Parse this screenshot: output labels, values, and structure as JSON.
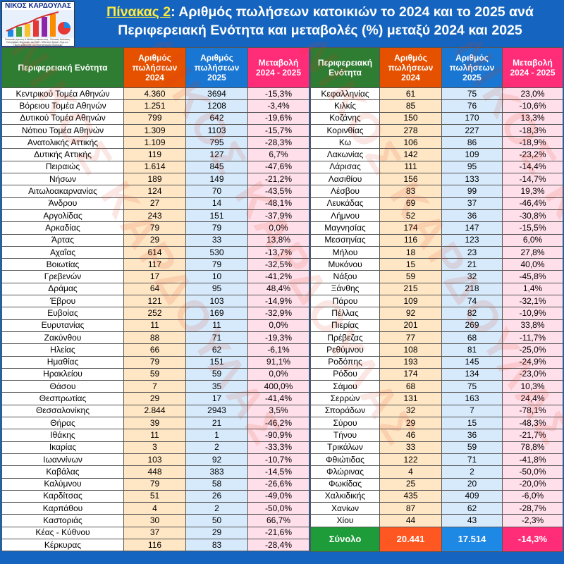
{
  "logo": {
    "name": "ΝΙΚΟΣ ΚΑΡΔΟΥΛΑΣ",
    "subtitle": "Στατιστικές έρευνες & Μελέτες επικοινωνίας - Πολιτικές Αναλύσεις · Τοπογράφος Μηχανικός του ΕΜΠ - MSc στην Αγορά - Εργ.κ.α. · Πρώην καθηγητής του Πανεπιστημίου Θεσσαλίας"
  },
  "title": {
    "label": "Πίνακας 2",
    "line1": ": Αριθμός πωλήσεων κατοικιών το 2024 και το 2025 ανά",
    "line2": "Περιφερειακή Ενότητα και μεταβολές (%) μεταξύ 2024 και 2025"
  },
  "watermark": "ΝΙΚΟΣ ΚΑΡΔΟΥΛΑΣ",
  "headers": {
    "region": "Περιφερειακή Ενότητα",
    "sales2024": "Αριθμός πωλήσεων 2024",
    "sales2025": "Αριθμός πωλήσεων 2025",
    "change": "Μεταβολή 2024 - 2025"
  },
  "left_rows": [
    [
      "Κεντρικού Τομέα Αθηνών",
      "4.360",
      "3694",
      "-15,3%"
    ],
    [
      "Βόρειου Τομέα Αθηνών",
      "1.251",
      "1208",
      "-3,4%"
    ],
    [
      "Δυτικού Τομέα Αθηνών",
      "799",
      "642",
      "-19,6%"
    ],
    [
      "Νότιου Τομέα Αθηνών",
      "1.309",
      "1103",
      "-15,7%"
    ],
    [
      "Ανατολικής Αττικής",
      "1.109",
      "795",
      "-28,3%"
    ],
    [
      "Δυτικής Αττικής",
      "119",
      "127",
      "6,7%"
    ],
    [
      "Πειραιώς",
      "1.614",
      "845",
      "-47,6%"
    ],
    [
      "Νήσων",
      "189",
      "149",
      "-21,2%"
    ],
    [
      "Αιτωλοακαρνανίας",
      "124",
      "70",
      "-43,5%"
    ],
    [
      "Άνδρου",
      "27",
      "14",
      "-48,1%"
    ],
    [
      "Αργολίδας",
      "243",
      "151",
      "-37,9%"
    ],
    [
      "Αρκαδίας",
      "79",
      "79",
      "0,0%"
    ],
    [
      "Άρτας",
      "29",
      "33",
      "13,8%"
    ],
    [
      "Αχαΐας",
      "614",
      "530",
      "-13,7%"
    ],
    [
      "Βοιωτίας",
      "117",
      "79",
      "-32,5%"
    ],
    [
      "Γρεβενών",
      "17",
      "10",
      "-41,2%"
    ],
    [
      "Δράμας",
      "64",
      "95",
      "48,4%"
    ],
    [
      "Έβρου",
      "121",
      "103",
      "-14,9%"
    ],
    [
      "Ευβοίας",
      "252",
      "169",
      "-32,9%"
    ],
    [
      "Ευρυτανίας",
      "11",
      "11",
      "0,0%"
    ],
    [
      "Ζακύνθου",
      "88",
      "71",
      "-19,3%"
    ],
    [
      "Ηλείας",
      "66",
      "62",
      "-6,1%"
    ],
    [
      "Ημαθίας",
      "79",
      "151",
      "91,1%"
    ],
    [
      "Ηρακλείου",
      "59",
      "59",
      "0,0%"
    ],
    [
      "Θάσου",
      "7",
      "35",
      "400,0%"
    ],
    [
      "Θεσπρωτίας",
      "29",
      "17",
      "-41,4%"
    ],
    [
      "Θεσσαλονίκης",
      "2.844",
      "2943",
      "3,5%"
    ],
    [
      "Θήρας",
      "39",
      "21",
      "-46,2%"
    ],
    [
      "Ιθάκης",
      "11",
      "1",
      "-90,9%"
    ],
    [
      "Ικαρίας",
      "3",
      "2",
      "-33,3%"
    ],
    [
      "Ιωαννίνων",
      "103",
      "92",
      "-10,7%"
    ],
    [
      "Καβάλας",
      "448",
      "383",
      "-14,5%"
    ],
    [
      "Καλύμνου",
      "79",
      "58",
      "-26,6%"
    ],
    [
      "Καρδίτσας",
      "51",
      "26",
      "-49,0%"
    ],
    [
      "Καρπάθου",
      "4",
      "2",
      "-50,0%"
    ],
    [
      "Καστοριάς",
      "30",
      "50",
      "66,7%"
    ],
    [
      "Κέας - Κύθνου",
      "37",
      "29",
      "-21,6%"
    ],
    [
      "Κέρκυρας",
      "116",
      "83",
      "-28,4%"
    ]
  ],
  "right_rows": [
    [
      "Κεφαλληνίας",
      "61",
      "75",
      "23,0%"
    ],
    [
      "Κιλκίς",
      "85",
      "76",
      "-10,6%"
    ],
    [
      "Κοζάνης",
      "150",
      "170",
      "13,3%"
    ],
    [
      "Κορινθίας",
      "278",
      "227",
      "-18,3%"
    ],
    [
      "Κω",
      "106",
      "86",
      "-18,9%"
    ],
    [
      "Λακωνίας",
      "142",
      "109",
      "-23,2%"
    ],
    [
      "Λάρισας",
      "111",
      "95",
      "-14,4%"
    ],
    [
      "Λασιθίου",
      "156",
      "133",
      "-14,7%"
    ],
    [
      "Λέσβου",
      "83",
      "99",
      "19,3%"
    ],
    [
      "Λευκάδας",
      "69",
      "37",
      "-46,4%"
    ],
    [
      "Λήμνου",
      "52",
      "36",
      "-30,8%"
    ],
    [
      "Μαγνησίας",
      "174",
      "147",
      "-15,5%"
    ],
    [
      "Μεσσηνίας",
      "116",
      "123",
      "6,0%"
    ],
    [
      "Μήλου",
      "18",
      "23",
      "27,8%"
    ],
    [
      "Μυκόνου",
      "15",
      "21",
      "40,0%"
    ],
    [
      "Νάξου",
      "59",
      "32",
      "-45,8%"
    ],
    [
      "Ξάνθης",
      "215",
      "218",
      "1,4%"
    ],
    [
      "Πάρου",
      "109",
      "74",
      "-32,1%"
    ],
    [
      "Πέλλας",
      "92",
      "82",
      "-10,9%"
    ],
    [
      "Πιερίας",
      "201",
      "269",
      "33,8%"
    ],
    [
      "Πρέβεζας",
      "77",
      "68",
      "-11,7%"
    ],
    [
      "Ρεθύμνου",
      "108",
      "81",
      "-25,0%"
    ],
    [
      "Ροδόπης",
      "193",
      "145",
      "-24,9%"
    ],
    [
      "Ρόδου",
      "174",
      "134",
      "-23,0%"
    ],
    [
      "Σάμου",
      "68",
      "75",
      "10,3%"
    ],
    [
      "Σερρών",
      "131",
      "163",
      "24,4%"
    ],
    [
      "Σποράδων",
      "32",
      "7",
      "-78,1%"
    ],
    [
      "Σύρου",
      "29",
      "15",
      "-48,3%"
    ],
    [
      "Τήνου",
      "46",
      "36",
      "-21,7%"
    ],
    [
      "Τρικάλων",
      "33",
      "59",
      "78,8%"
    ],
    [
      "Φθιώτιδας",
      "122",
      "71",
      "-41,8%"
    ],
    [
      "Φλώρινας",
      "4",
      "2",
      "-50,0%"
    ],
    [
      "Φωκίδας",
      "25",
      "20",
      "-20,0%"
    ],
    [
      "Χαλκιδικής",
      "435",
      "409",
      "-6,0%"
    ],
    [
      "Χανίων",
      "87",
      "62",
      "-28,7%"
    ],
    [
      "Χίου",
      "44",
      "43",
      "-2,3%"
    ]
  ],
  "total": {
    "label": "Σύνολο",
    "sales2024": "20.441",
    "sales2025": "17.514",
    "change": "-14,3%"
  }
}
